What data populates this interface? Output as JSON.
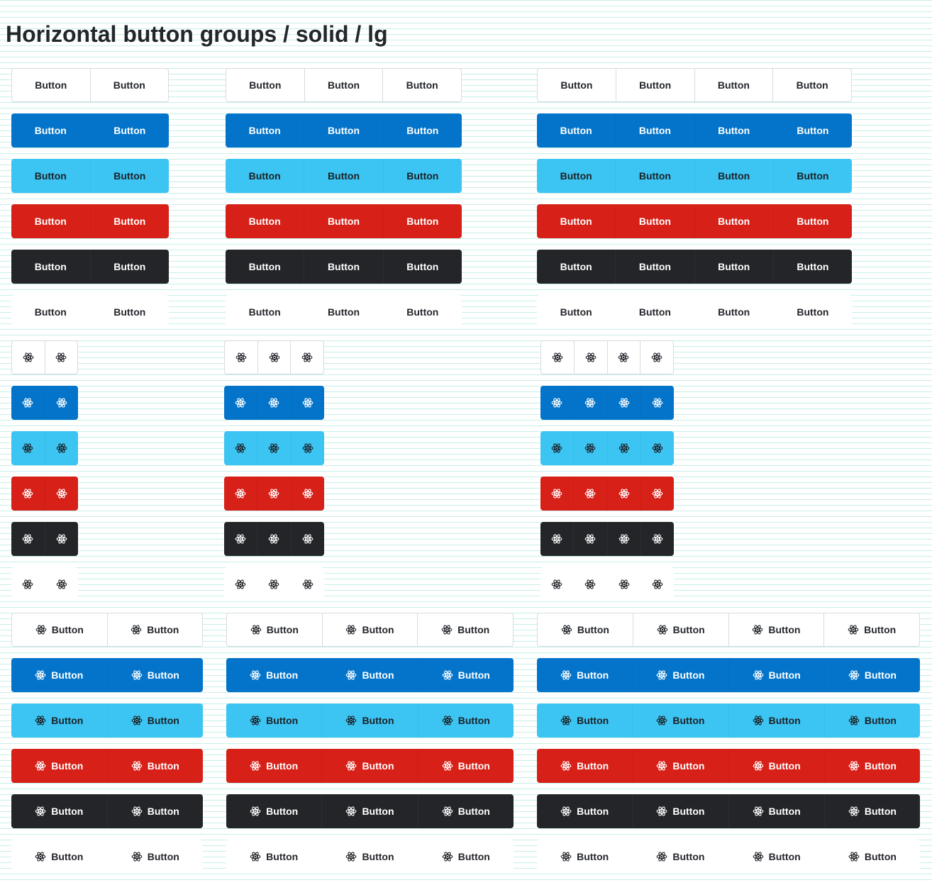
{
  "page": {
    "title": "Horizontal button groups / solid / lg"
  },
  "button": {
    "label": "Button",
    "icon": "atom-icon"
  },
  "variants": [
    {
      "id": "secondary",
      "name": "default",
      "color": "#ffffff"
    },
    {
      "id": "primary",
      "name": "primary",
      "color": "#0374c9"
    },
    {
      "id": "accent",
      "name": "accent",
      "color": "#3cc4f2"
    },
    {
      "id": "danger",
      "name": "danger",
      "color": "#d72017"
    },
    {
      "id": "dark",
      "name": "dark",
      "color": "#232529"
    },
    {
      "id": "ghost",
      "name": "ghost",
      "color": "#ffffff"
    }
  ],
  "sections": [
    {
      "id": "text",
      "content": "label"
    },
    {
      "id": "icon",
      "content": "icon"
    },
    {
      "id": "icon-text",
      "content": "icon+label"
    }
  ],
  "group_sizes": [
    2,
    3,
    4
  ]
}
